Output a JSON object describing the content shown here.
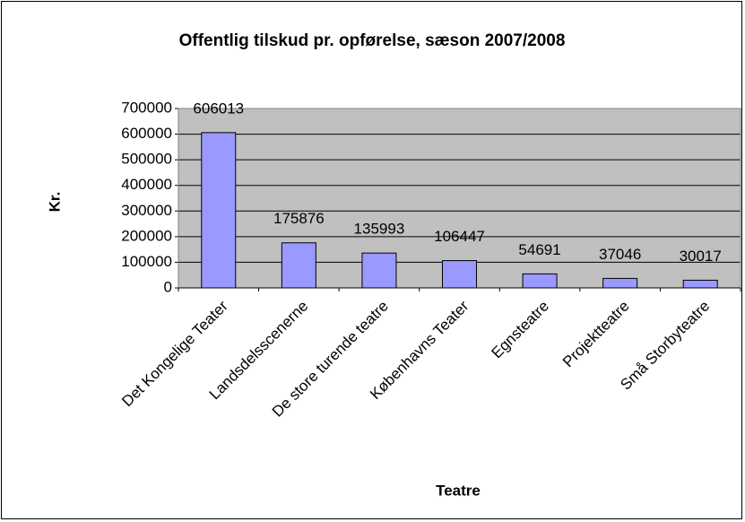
{
  "chart_data": {
    "type": "bar",
    "title": "Offentlig tilskud pr. opførelse, sæson 2007/2008",
    "y_label": "Kr.",
    "x_label": "Teatre",
    "categories": [
      "Det Kongelige Teater",
      "Landsdelsscenerne",
      "De store turende teatre",
      "Københavns Teater",
      "Egnsteatre",
      "Projektteatre",
      "Små Storbyteatre"
    ],
    "values": [
      606013,
      175876,
      135993,
      106447,
      54691,
      37046,
      30017
    ],
    "color": "#9999ff",
    "ylim": [
      0,
      700000
    ],
    "yticks": [
      0,
      100000,
      200000,
      300000,
      400000,
      500000,
      600000,
      700000
    ],
    "grid": true
  }
}
